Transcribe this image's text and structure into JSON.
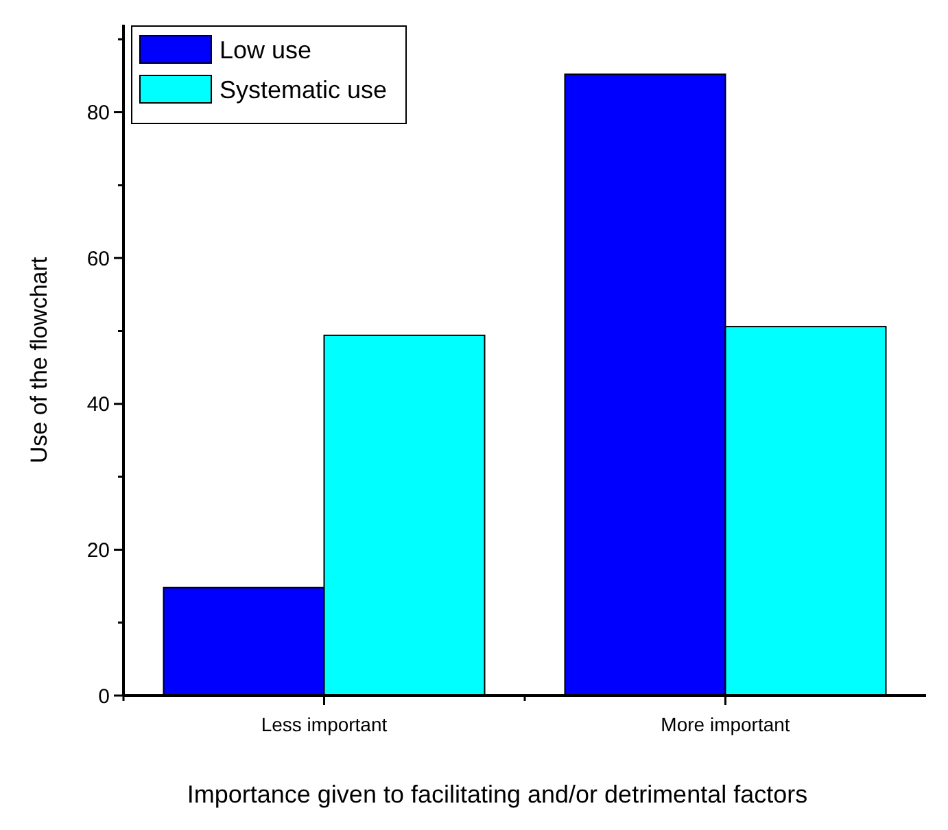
{
  "chart_data": {
    "type": "bar",
    "xlabel": "Importance given to facilitating and/or detrimental factors",
    "ylabel": "Use of the flowchart",
    "categories": [
      "Less important",
      "More important"
    ],
    "series": [
      {
        "name": "Low use",
        "color": "#0000ff",
        "values": [
          14.8,
          85.2
        ]
      },
      {
        "name": "Systematic use",
        "color": "#00ffff",
        "values": [
          49.4,
          50.6
        ]
      }
    ],
    "ylim": [
      0,
      92
    ],
    "yticks": [
      0,
      {
        "value": 10,
        "label": null
      },
      20,
      {
        "value": 30,
        "label": null
      },
      40,
      {
        "value": 50,
        "label": null
      },
      60,
      {
        "value": 70,
        "label": null
      },
      80,
      {
        "value": 90,
        "label": null
      }
    ],
    "grid": false,
    "legend": "top left"
  }
}
